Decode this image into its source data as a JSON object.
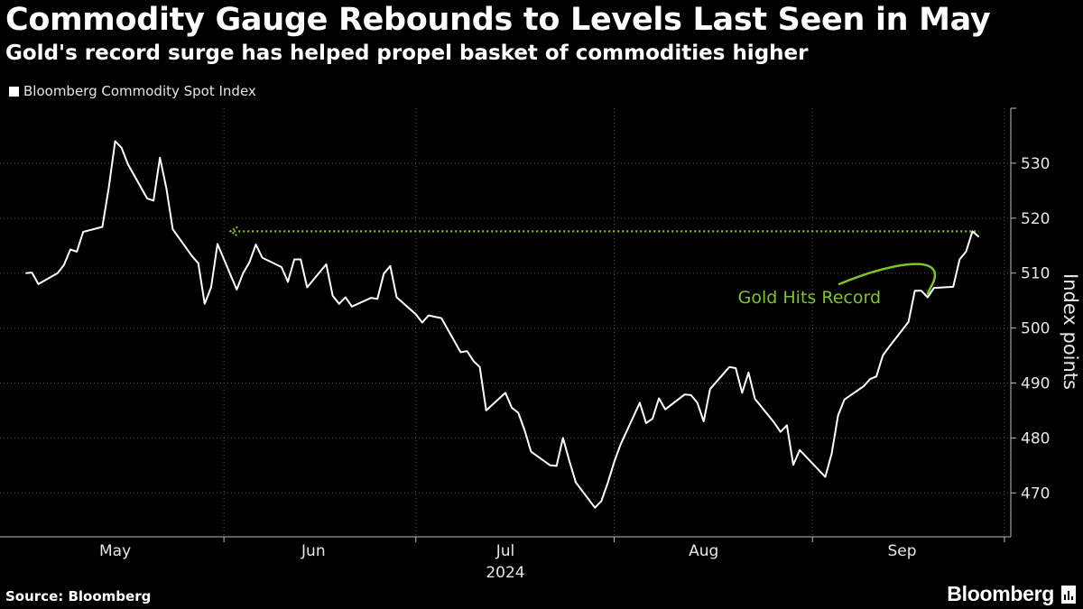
{
  "title": "Commodity Gauge Rebounds to Levels Last Seen in May",
  "subtitle": "Gold's record surge has helped propel basket of commodities higher",
  "source": "Source: Bloomberg",
  "brand": "Bloomberg",
  "colors": {
    "background": "#000000",
    "line": "#ffffff",
    "accent": "#7dc624",
    "grid": "#555555"
  },
  "chart_data": {
    "type": "line",
    "series": [
      {
        "name": "Bloomberg Commodity Spot Index",
        "values": [
          [
            "2024-05-01",
            510.0
          ],
          [
            "2024-05-02",
            510.1
          ],
          [
            "2024-05-03",
            508.0
          ],
          [
            "2024-05-06",
            510.0
          ],
          [
            "2024-05-07",
            511.5
          ],
          [
            "2024-05-08",
            514.3
          ],
          [
            "2024-05-09",
            513.9
          ],
          [
            "2024-05-10",
            517.5
          ],
          [
            "2024-05-13",
            518.4
          ],
          [
            "2024-05-14",
            525.5
          ],
          [
            "2024-05-15",
            534.0
          ],
          [
            "2024-05-16",
            532.8
          ],
          [
            "2024-05-17",
            529.8
          ],
          [
            "2024-05-20",
            523.6
          ],
          [
            "2024-05-21",
            523.2
          ],
          [
            "2024-05-22",
            531.0
          ],
          [
            "2024-05-23",
            525.5
          ],
          [
            "2024-05-24",
            518.0
          ],
          [
            "2024-05-27",
            513.1
          ],
          [
            "2024-05-28",
            511.8
          ],
          [
            "2024-05-29",
            504.4
          ],
          [
            "2024-05-30",
            507.4
          ],
          [
            "2024-05-31",
            515.3
          ],
          [
            "2024-06-03",
            507.0
          ],
          [
            "2024-06-04",
            510.0
          ],
          [
            "2024-06-05",
            512.0
          ],
          [
            "2024-06-06",
            515.2
          ],
          [
            "2024-06-07",
            512.8
          ],
          [
            "2024-06-10",
            511.1
          ],
          [
            "2024-06-11",
            508.4
          ],
          [
            "2024-06-12",
            512.5
          ],
          [
            "2024-06-13",
            512.5
          ],
          [
            "2024-06-14",
            507.4
          ],
          [
            "2024-06-17",
            511.6
          ],
          [
            "2024-06-18",
            505.9
          ],
          [
            "2024-06-19",
            504.4
          ],
          [
            "2024-06-20",
            505.6
          ],
          [
            "2024-06-21",
            503.9
          ],
          [
            "2024-06-24",
            505.5
          ],
          [
            "2024-06-25",
            505.3
          ],
          [
            "2024-06-26",
            509.9
          ],
          [
            "2024-06-27",
            511.3
          ],
          [
            "2024-06-28",
            505.6
          ],
          [
            "2024-07-01",
            502.5
          ],
          [
            "2024-07-02",
            501.0
          ],
          [
            "2024-07-03",
            502.3
          ],
          [
            "2024-07-05",
            501.8
          ],
          [
            "2024-07-08",
            495.6
          ],
          [
            "2024-07-09",
            495.8
          ],
          [
            "2024-07-10",
            494.0
          ],
          [
            "2024-07-11",
            492.9
          ],
          [
            "2024-07-12",
            485.0
          ],
          [
            "2024-07-15",
            488.2
          ],
          [
            "2024-07-16",
            485.5
          ],
          [
            "2024-07-17",
            484.6
          ],
          [
            "2024-07-18",
            481.4
          ],
          [
            "2024-07-19",
            477.5
          ],
          [
            "2024-07-22",
            475.0
          ],
          [
            "2024-07-23",
            474.9
          ],
          [
            "2024-07-24",
            480.0
          ],
          [
            "2024-07-25",
            475.8
          ],
          [
            "2024-07-26",
            471.9
          ],
          [
            "2024-07-29",
            467.3
          ],
          [
            "2024-07-30",
            468.5
          ],
          [
            "2024-07-31",
            471.8
          ],
          [
            "2024-08-01",
            475.6
          ],
          [
            "2024-08-02",
            478.8
          ],
          [
            "2024-08-05",
            486.4
          ],
          [
            "2024-08-06",
            482.7
          ],
          [
            "2024-08-07",
            483.5
          ],
          [
            "2024-08-08",
            487.2
          ],
          [
            "2024-08-09",
            485.2
          ],
          [
            "2024-08-12",
            487.9
          ],
          [
            "2024-08-13",
            487.8
          ],
          [
            "2024-08-14",
            486.4
          ],
          [
            "2024-08-15",
            483.0
          ],
          [
            "2024-08-16",
            488.9
          ],
          [
            "2024-08-19",
            492.9
          ],
          [
            "2024-08-20",
            492.7
          ],
          [
            "2024-08-21",
            488.2
          ],
          [
            "2024-08-22",
            491.9
          ],
          [
            "2024-08-23",
            487.1
          ],
          [
            "2024-08-26",
            482.8
          ],
          [
            "2024-08-27",
            481.1
          ],
          [
            "2024-08-28",
            482.3
          ],
          [
            "2024-08-29",
            475.1
          ],
          [
            "2024-08-30",
            477.8
          ],
          [
            "2024-09-03",
            472.9
          ],
          [
            "2024-09-04",
            477.1
          ],
          [
            "2024-09-05",
            484.1
          ],
          [
            "2024-09-06",
            487.0
          ],
          [
            "2024-09-09",
            489.4
          ],
          [
            "2024-09-10",
            490.7
          ],
          [
            "2024-09-11",
            491.2
          ],
          [
            "2024-09-12",
            495.0
          ],
          [
            "2024-09-13",
            496.6
          ],
          [
            "2024-09-16",
            501.1
          ],
          [
            "2024-09-17",
            506.8
          ],
          [
            "2024-09-18",
            506.8
          ],
          [
            "2024-09-19",
            505.6
          ],
          [
            "2024-09-20",
            507.3
          ],
          [
            "2024-09-23",
            507.5
          ],
          [
            "2024-09-24",
            512.5
          ],
          [
            "2024-09-25",
            513.9
          ],
          [
            "2024-09-26",
            517.6
          ],
          [
            "2024-09-27",
            516.6
          ]
        ]
      }
    ],
    "x_tick_labels": [
      "May",
      "Jun",
      "Jul",
      "Aug",
      "Sep"
    ],
    "x_tick_dates": [
      "2024-05-15",
      "2024-06-15",
      "2024-07-15",
      "2024-08-15",
      "2024-09-15"
    ],
    "x_period_boundaries": [
      "2024-06-01",
      "2024-07-01",
      "2024-08-01",
      "2024-09-01",
      "2024-10-01"
    ],
    "year_label": "2024",
    "xlim": [
      "2024-04-27",
      "2024-10-02"
    ],
    "y_ticks": [
      470,
      480,
      490,
      500,
      510,
      520,
      530
    ],
    "ylim": [
      462,
      540
    ],
    "ylabel": "Index points",
    "y_axis_side": "right",
    "grid": true,
    "reference_line": {
      "value": 517.6,
      "from": "2024-06-02",
      "to": "2024-09-27",
      "style": "dotted",
      "color": "#7dc624"
    },
    "annotation": {
      "text": "Gold Hits Record",
      "date": "2024-09-19",
      "value": 505.6
    }
  }
}
